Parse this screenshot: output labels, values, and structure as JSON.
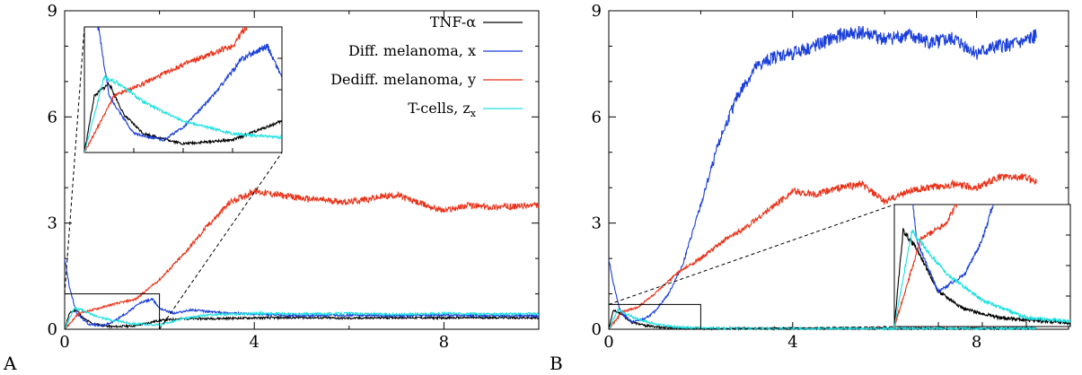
{
  "colors": {
    "tnf": "#000000",
    "diff": "#1a3fd9",
    "dediff": "#e8331a",
    "tcells": "#1fe0e0",
    "axis": "#000000"
  },
  "chart_data": [
    {
      "panel_label": "A",
      "type": "line",
      "xlim": [
        0,
        10
      ],
      "ylim": [
        0,
        9
      ],
      "xticks": [
        "0",
        "4",
        "8"
      ],
      "yticks": [
        "0",
        "3",
        "6",
        "9"
      ],
      "legend": [
        "TNF-α",
        "Diff. melanoma, x",
        "Dediff. melanoma, y",
        "T-cells, z"
      ],
      "legend_subscript": "x",
      "series": [
        {
          "name": "TNF-α",
          "x": [
            0,
            0.1,
            0.25,
            0.4,
            0.6,
            1.0,
            1.5,
            2.0,
            2.5,
            3,
            4,
            5,
            6,
            7,
            8,
            9,
            10
          ],
          "y": [
            0,
            0.45,
            0.55,
            0.3,
            0.15,
            0.07,
            0.1,
            0.25,
            0.3,
            0.3,
            0.32,
            0.33,
            0.31,
            0.33,
            0.32,
            0.33,
            0.32
          ]
        },
        {
          "name": "Diff. melanoma, x",
          "x": [
            0,
            0.1,
            0.25,
            0.5,
            0.8,
            1.0,
            1.3,
            1.6,
            1.85,
            2.0,
            2.3,
            2.7,
            3,
            4,
            5,
            6,
            7,
            8,
            9,
            10
          ],
          "y": [
            2.0,
            1.2,
            0.45,
            0.15,
            0.1,
            0.2,
            0.45,
            0.75,
            0.85,
            0.6,
            0.45,
            0.55,
            0.5,
            0.42,
            0.38,
            0.4,
            0.38,
            0.4,
            0.38,
            0.38
          ]
        },
        {
          "name": "Dediff. melanoma, y",
          "x": [
            0,
            0.3,
            0.6,
            1.0,
            1.5,
            2.0,
            2.5,
            3.0,
            3.5,
            4.0,
            4.5,
            5,
            6,
            7,
            7.5,
            8,
            8.5,
            9,
            10
          ],
          "y": [
            0,
            0.45,
            0.55,
            0.7,
            0.85,
            1.4,
            2.1,
            2.9,
            3.6,
            3.9,
            3.8,
            3.7,
            3.6,
            3.8,
            3.55,
            3.35,
            3.5,
            3.45,
            3.5
          ]
        },
        {
          "name": "T-cells, z",
          "x": [
            0,
            0.2,
            0.35,
            0.6,
            1.0,
            1.5,
            2.0,
            2.5,
            3,
            4,
            5,
            6,
            7,
            8,
            9,
            10
          ],
          "y": [
            0,
            0.6,
            0.55,
            0.4,
            0.25,
            0.15,
            0.12,
            0.3,
            0.4,
            0.45,
            0.43,
            0.45,
            0.42,
            0.45,
            0.43,
            0.44
          ]
        }
      ],
      "inset_window": {
        "x": [
          0,
          2
        ],
        "y": [
          0,
          1
        ]
      }
    },
    {
      "panel_label": "B",
      "type": "line",
      "xlim": [
        0,
        10
      ],
      "ylim": [
        0,
        9
      ],
      "xticks": [
        "0",
        "4",
        "8"
      ],
      "yticks": [
        "0",
        "3",
        "6",
        "9"
      ],
      "series": [
        {
          "name": "TNF-α",
          "x": [
            0,
            0.1,
            0.25,
            0.5,
            0.8,
            1.2,
            2,
            3,
            4,
            6,
            8,
            9.3
          ],
          "y": [
            0,
            0.55,
            0.45,
            0.2,
            0.1,
            0.05,
            0.02,
            0.02,
            0.02,
            0.02,
            0.02,
            0.02
          ]
        },
        {
          "name": "Diff. melanoma, x",
          "x": [
            0,
            0.1,
            0.25,
            0.5,
            0.8,
            1.0,
            1.3,
            1.6,
            2.0,
            2.4,
            2.8,
            3.2,
            3.6,
            4.0,
            4.5,
            5,
            5.5,
            6,
            6.5,
            7,
            7.5,
            8,
            8.5,
            9,
            9.3
          ],
          "y": [
            2.0,
            1.3,
            0.5,
            0.2,
            0.3,
            0.5,
            1.0,
            1.8,
            3.5,
            5.3,
            6.6,
            7.4,
            7.7,
            7.8,
            8.0,
            8.3,
            8.4,
            8.2,
            8.3,
            8.1,
            8.2,
            7.8,
            8.0,
            8.1,
            8.3
          ]
        },
        {
          "name": "Dediff. melanoma, y",
          "x": [
            0,
            0.3,
            0.6,
            1.0,
            1.5,
            2.0,
            2.5,
            3.0,
            3.5,
            4.0,
            4.5,
            5.0,
            5.5,
            6.0,
            6.5,
            7,
            7.5,
            8,
            8.5,
            9,
            9.3
          ],
          "y": [
            0,
            0.5,
            0.6,
            1.0,
            1.6,
            2.0,
            2.5,
            2.9,
            3.4,
            3.9,
            3.8,
            4.0,
            4.1,
            3.6,
            3.9,
            4.0,
            4.1,
            4.0,
            4.3,
            4.3,
            4.2
          ]
        },
        {
          "name": "T-cells, z",
          "x": [
            0,
            0.2,
            0.35,
            0.6,
            1.0,
            1.5,
            2.0,
            3,
            4,
            6,
            8,
            9.3
          ],
          "y": [
            0,
            0.55,
            0.45,
            0.3,
            0.15,
            0.05,
            0.03,
            0.02,
            0.02,
            0.02,
            0.02,
            0.02
          ]
        }
      ],
      "inset_window": {
        "x": [
          0,
          2
        ],
        "y": [
          0,
          0.7
        ]
      }
    }
  ]
}
